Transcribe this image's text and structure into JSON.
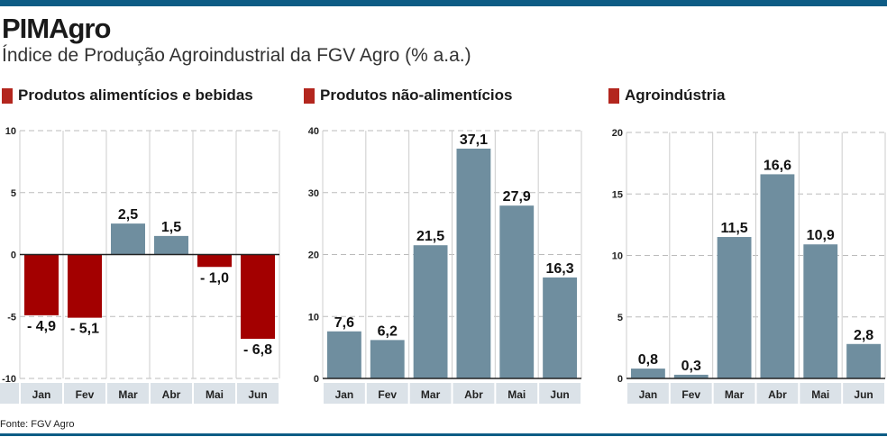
{
  "title": "PIMAgro",
  "subtitle": "Índice de Produção Agroindustrial da FGV Agro (% a.a.)",
  "source": "Fonte: FGV Agro",
  "colors": {
    "accent_bar": "#0d5c85",
    "negative": "#a30000",
    "positive": "#6f8e9f",
    "legend_square": "#b3261e",
    "category_strip": "#dbe2e8"
  },
  "chart_data": [
    {
      "type": "bar",
      "title": "Produtos alimentícios e bebidas",
      "categories": [
        "Jan",
        "Fev",
        "Mar",
        "Abr",
        "Mai",
        "Jun"
      ],
      "values": [
        -4.9,
        -5.1,
        2.5,
        1.5,
        -1.0,
        -6.8
      ],
      "labels": [
        "- 4,9",
        "- 5,1",
        "2,5",
        "1,5",
        "- 1,0",
        "- 6,8"
      ],
      "ylim": [
        -10,
        10
      ],
      "yticks": [
        10,
        5,
        0,
        -5,
        -10
      ],
      "grid": true
    },
    {
      "type": "bar",
      "title": "Produtos não-alimentícios",
      "categories": [
        "Jan",
        "Fev",
        "Mar",
        "Abr",
        "Mai",
        "Jun"
      ],
      "values": [
        7.6,
        6.2,
        21.5,
        37.1,
        27.9,
        16.3
      ],
      "labels": [
        "7,6",
        "6,2",
        "21,5",
        "37,1",
        "27,9",
        "16,3"
      ],
      "ylim": [
        0,
        40
      ],
      "yticks": [
        40,
        30,
        20,
        10,
        0
      ],
      "grid": true
    },
    {
      "type": "bar",
      "title": "Agroindústria",
      "categories": [
        "Jan",
        "Fev",
        "Mar",
        "Abr",
        "Mai",
        "Jun"
      ],
      "values": [
        0.8,
        0.3,
        11.5,
        16.6,
        10.9,
        2.8
      ],
      "labels": [
        "0,8",
        "0,3",
        "11,5",
        "16,6",
        "10,9",
        "2,8"
      ],
      "ylim": [
        0,
        20
      ],
      "yticks": [
        20,
        15,
        10,
        5,
        0
      ],
      "grid": true
    }
  ]
}
